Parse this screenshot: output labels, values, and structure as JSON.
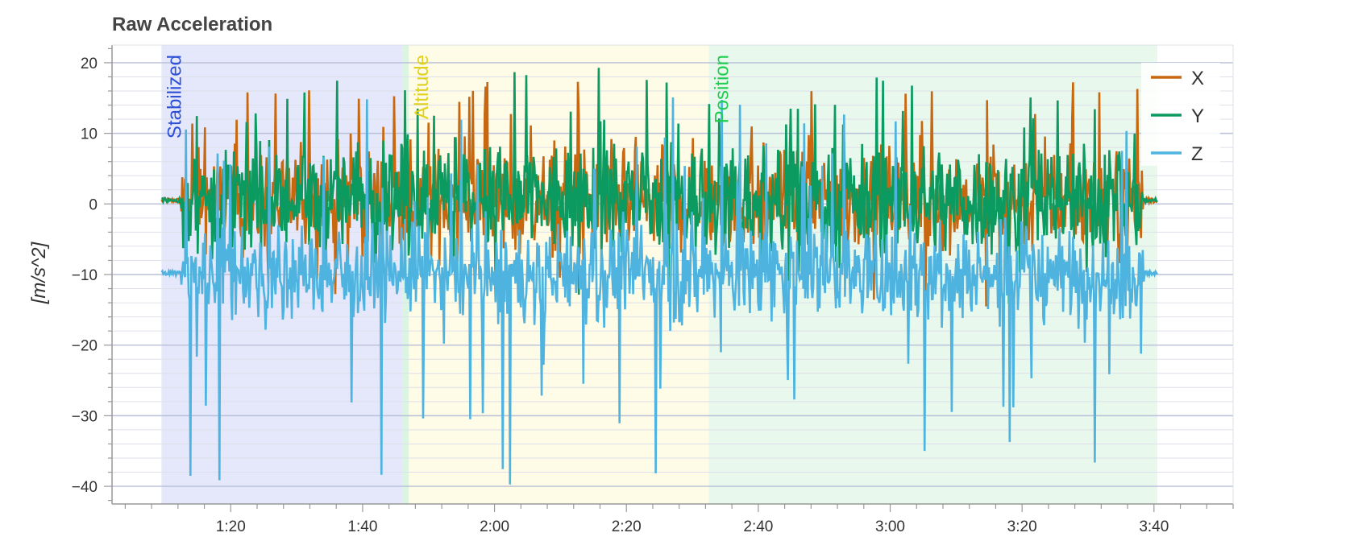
{
  "chart_data": {
    "type": "line",
    "title": "Raw Acceleration",
    "ylabel": "[m/s^2]",
    "xlabel": "",
    "xlim_seconds": [
      62,
      232
    ],
    "ylim": [
      -42.5,
      22.5
    ],
    "y_ticks": [
      20,
      10,
      0,
      -10,
      -20,
      -30,
      -40
    ],
    "y_tick_labels": [
      "20",
      "10",
      "0",
      "−10",
      "−20",
      "−30",
      "−40"
    ],
    "x_ticks_seconds": [
      80,
      100,
      120,
      140,
      160,
      180,
      200,
      220
    ],
    "x_tick_labels": [
      "1:20",
      "1:40",
      "2:00",
      "2:20",
      "2:40",
      "3:00",
      "3:20",
      "3:40"
    ],
    "grid": true,
    "legend_position": "top-right",
    "flight_modes": [
      {
        "name": "Stabilized",
        "start": 69.5,
        "end": 106.0,
        "color": "#d5dcf7",
        "label_color": "#2d4fd6"
      },
      {
        "name": "Altitude",
        "start": 107.0,
        "end": 152.5,
        "color": "#fdf9d8",
        "label_color": "#e0d11f"
      },
      {
        "name": "Position",
        "start": 152.5,
        "end": 220.5,
        "color": "#dcf5e2",
        "label_color": "#1fce4f"
      }
    ],
    "series": [
      {
        "name": "X",
        "color": "#c76810",
        "baseline": 0.5,
        "amplitude": 6.5,
        "spike_max": 17.5,
        "spike_min": -21
      },
      {
        "name": "Y",
        "color": "#0b9a5f",
        "baseline": 0.5,
        "amplitude": 7.0,
        "spike_max": 19.5,
        "spike_min": -21
      },
      {
        "name": "Z",
        "color": "#4fb3e0",
        "baseline": -9.8,
        "amplitude": 6.0,
        "spike_max": 15.5,
        "spike_min": -40
      }
    ],
    "data_start_seconds": 69.5,
    "data_end_seconds": 220.5,
    "active_start_seconds": 72.5,
    "active_end_seconds": 218.5,
    "rest_values": {
      "X": 0.5,
      "Y": 0.5,
      "Z": -9.8
    }
  }
}
